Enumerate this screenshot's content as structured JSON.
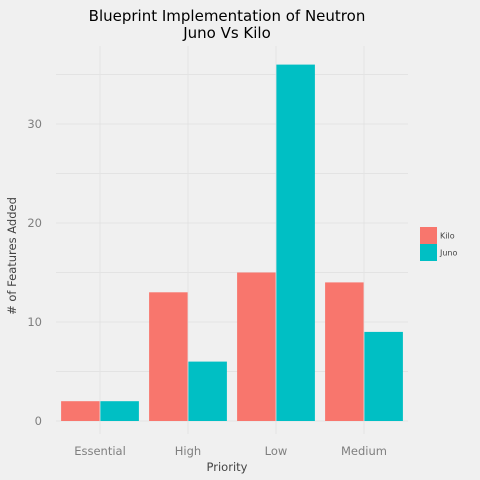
{
  "chart_data": {
    "type": "bar",
    "title": "Blueprint Implementation of Neutron",
    "subtitle": "Juno Vs Kilo",
    "xlabel": "Priority",
    "ylabel": "# of Features Added",
    "categories": [
      "Essential",
      "High",
      "Low",
      "Medium"
    ],
    "series": [
      {
        "name": "Kilo",
        "color": "#f8766d",
        "values": [
          2,
          13,
          15,
          14
        ]
      },
      {
        "name": "Juno",
        "color": "#00bfc4",
        "values": [
          2,
          6,
          36,
          9
        ]
      }
    ],
    "ylim": [
      0,
      36
    ],
    "yticks": [
      0,
      10,
      20,
      30
    ],
    "grid": true,
    "legend_position": "right"
  }
}
